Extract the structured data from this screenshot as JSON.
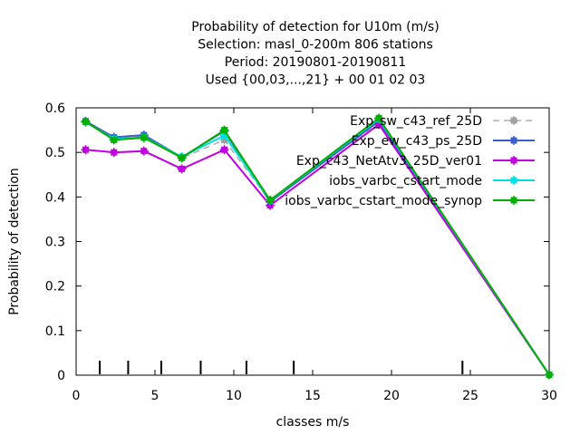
{
  "chart_data": {
    "type": "line",
    "title_lines": [
      "Probability of detection  for U10m (m/s)",
      "Selection: masl_0-200m    806 stations",
      "Period: 20190801-20190811",
      "Used {00,03,...,21} + 00 01 02 03"
    ],
    "xlabel": "classes m/s",
    "ylabel": "Probability of detection",
    "xlim": [
      0,
      30
    ],
    "ylim": [
      0,
      0.6
    ],
    "xticks": [
      "0",
      "5",
      "10",
      "15",
      "20",
      "25",
      "30"
    ],
    "yticks": [
      "0",
      "0.1",
      "0.2",
      "0.3",
      "0.4",
      "0.5",
      "0.6"
    ],
    "grid": false,
    "legend_position": "top-right",
    "class_marks": [
      1.5,
      3.3,
      5.4,
      7.9,
      10.8,
      13.8,
      24.5
    ],
    "series": [
      {
        "name": "Exp_sw_c43_ref_25D",
        "color": "#a0a0a0",
        "dash": true,
        "x": [
          0.6,
          2.4,
          4.3,
          6.7,
          9.4,
          12.3,
          19.2,
          30.0
        ],
        "y": [
          0.57,
          0.532,
          0.536,
          0.487,
          0.528,
          0.39,
          0.567,
          0.001
        ]
      },
      {
        "name": "Exp_ew_c43_ps_25D",
        "color": "#3a5fcd",
        "dash": false,
        "x": [
          0.6,
          2.4,
          4.3,
          6.7,
          9.4,
          12.3,
          19.2,
          30.0
        ],
        "y": [
          0.57,
          0.534,
          0.539,
          0.489,
          0.548,
          0.389,
          0.57,
          0.001
        ]
      },
      {
        "name": "Exp_c43_NetAtv3_25D_ver01",
        "color": "#c000e0",
        "dash": false,
        "x": [
          0.6,
          2.4,
          4.3,
          6.7,
          9.4,
          12.3,
          19.2,
          30.0
        ],
        "y": [
          0.506,
          0.5,
          0.503,
          0.463,
          0.506,
          0.381,
          0.563,
          0.001
        ]
      },
      {
        "name": "iobs_varbc_cstart_mode",
        "color": "#00e0e0",
        "dash": false,
        "x": [
          0.6,
          2.4,
          4.3,
          6.7,
          9.4,
          12.3,
          19.2,
          30.0
        ],
        "y": [
          0.568,
          0.53,
          0.534,
          0.49,
          0.538,
          0.392,
          0.575,
          0.001
        ]
      },
      {
        "name": "iobs_varbc_cstart_mode_synop",
        "color": "#00b000",
        "dash": false,
        "x": [
          0.6,
          2.4,
          4.3,
          6.7,
          9.4,
          12.3,
          19.2,
          30.0
        ],
        "y": [
          0.569,
          0.528,
          0.533,
          0.488,
          0.55,
          0.393,
          0.577,
          0.001
        ]
      }
    ]
  }
}
